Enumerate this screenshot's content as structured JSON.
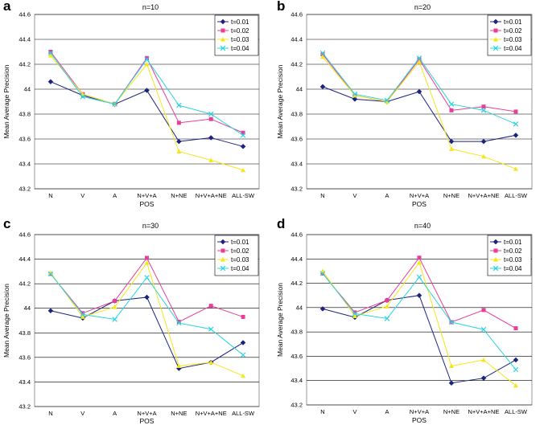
{
  "colors": {
    "t001": "#1a237e",
    "t002": "#e83e9a",
    "t003": "#f5e61a",
    "t004": "#2ad4e0",
    "grid": "#000000",
    "frame": "#808080"
  },
  "chart_data": [
    {
      "type": "line",
      "panel_label": "a",
      "title": "n=10",
      "xlabel": "POS",
      "ylabel": "Mean Average Precision",
      "categories": [
        "N",
        "V",
        "A",
        "N+V+A",
        "N+NE",
        "N+V+A+NE",
        "ALL-SW"
      ],
      "ylim": [
        43.2,
        44.6
      ],
      "yticks": [
        "43.2",
        "43.4",
        "43.6",
        "43.8",
        "44",
        "44.2",
        "44.4",
        "44.6"
      ],
      "grid": true,
      "legend_position": "top-right",
      "series": [
        {
          "name": "t=0.01",
          "marker": "diamond",
          "values": [
            44.06,
            43.95,
            43.88,
            43.99,
            43.58,
            43.61,
            43.54
          ]
        },
        {
          "name": "t=0.02",
          "marker": "square",
          "values": [
            44.3,
            43.96,
            43.88,
            44.25,
            43.73,
            43.76,
            43.65
          ]
        },
        {
          "name": "t=0.03",
          "marker": "triangle",
          "values": [
            44.27,
            43.96,
            43.88,
            44.2,
            43.5,
            43.43,
            43.35
          ]
        },
        {
          "name": "t=0.04",
          "marker": "x",
          "values": [
            44.29,
            43.94,
            43.88,
            44.24,
            43.87,
            43.8,
            43.63
          ]
        }
      ]
    },
    {
      "type": "line",
      "panel_label": "b",
      "title": "n=20",
      "xlabel": "POS",
      "ylabel": "Mean Average Precision",
      "categories": [
        "N",
        "V",
        "A",
        "N+V+A",
        "N+NE",
        "N+V+A+NE",
        "ALL-SW"
      ],
      "ylim": [
        43.2,
        44.6
      ],
      "yticks": [
        "43.2",
        "43.4",
        "43.6",
        "43.8",
        "44",
        "44.2",
        "44.4",
        "44.6"
      ],
      "grid": true,
      "legend_position": "top-right",
      "series": [
        {
          "name": "t=0.01",
          "marker": "diamond",
          "values": [
            44.02,
            43.92,
            43.9,
            43.98,
            43.58,
            43.58,
            43.63
          ]
        },
        {
          "name": "t=0.02",
          "marker": "square",
          "values": [
            44.28,
            43.95,
            43.9,
            44.24,
            43.83,
            43.86,
            43.82
          ]
        },
        {
          "name": "t=0.03",
          "marker": "triangle",
          "values": [
            44.26,
            43.95,
            43.9,
            44.22,
            43.52,
            43.46,
            43.36
          ]
        },
        {
          "name": "t=0.04",
          "marker": "x",
          "values": [
            44.29,
            43.96,
            43.91,
            44.25,
            43.88,
            43.83,
            43.72
          ]
        }
      ]
    },
    {
      "type": "line",
      "panel_label": "c",
      "title": "n=30",
      "xlabel": "POS",
      "ylabel": "Mean Average Precision",
      "categories": [
        "N",
        "V",
        "A",
        "N+V+A",
        "N+NE",
        "N+V+A+NE",
        "ALL-SW"
      ],
      "ylim": [
        43.2,
        44.6
      ],
      "yticks": [
        "43.2",
        "43.4",
        "43.6",
        "43.8",
        "44",
        "44.2",
        "44.4",
        "44.6"
      ],
      "grid": true,
      "legend_position": "top-right",
      "series": [
        {
          "name": "t=0.01",
          "marker": "diamond",
          "values": [
            43.98,
            43.92,
            44.06,
            44.09,
            43.51,
            43.56,
            43.72
          ]
        },
        {
          "name": "t=0.02",
          "marker": "square",
          "values": [
            44.28,
            43.96,
            44.06,
            44.41,
            43.89,
            44.02,
            43.93
          ]
        },
        {
          "name": "t=0.03",
          "marker": "triangle",
          "values": [
            44.29,
            43.93,
            44.01,
            44.37,
            43.53,
            43.56,
            43.45
          ]
        },
        {
          "name": "t=0.04",
          "marker": "x",
          "values": [
            44.28,
            43.95,
            43.91,
            44.25,
            43.88,
            43.83,
            43.62
          ]
        }
      ]
    },
    {
      "type": "line",
      "panel_label": "d",
      "title": "n=40",
      "xlabel": "POS",
      "ylabel": "Mean Average Precision",
      "categories": [
        "N",
        "V",
        "A",
        "N+V+A",
        "N+NE",
        "N+V+A+NE",
        "ALL-SW"
      ],
      "ylim": [
        43.2,
        44.6
      ],
      "yticks": [
        "43.2",
        "43.4",
        "43.6",
        "43.8",
        "44",
        "44.2",
        "44.4",
        "44.6"
      ],
      "grid": true,
      "legend_position": "top-right",
      "series": [
        {
          "name": "t=0.01",
          "marker": "diamond",
          "values": [
            43.99,
            43.92,
            44.06,
            44.1,
            43.38,
            43.42,
            43.57
          ]
        },
        {
          "name": "t=0.02",
          "marker": "square",
          "values": [
            44.28,
            43.96,
            44.06,
            44.41,
            43.88,
            43.98,
            43.83
          ]
        },
        {
          "name": "t=0.03",
          "marker": "triangle",
          "values": [
            44.3,
            43.93,
            44.01,
            44.37,
            43.52,
            43.57,
            43.36
          ]
        },
        {
          "name": "t=0.04",
          "marker": "x",
          "values": [
            44.28,
            43.95,
            43.91,
            44.25,
            43.88,
            43.82,
            43.49
          ]
        }
      ]
    }
  ]
}
